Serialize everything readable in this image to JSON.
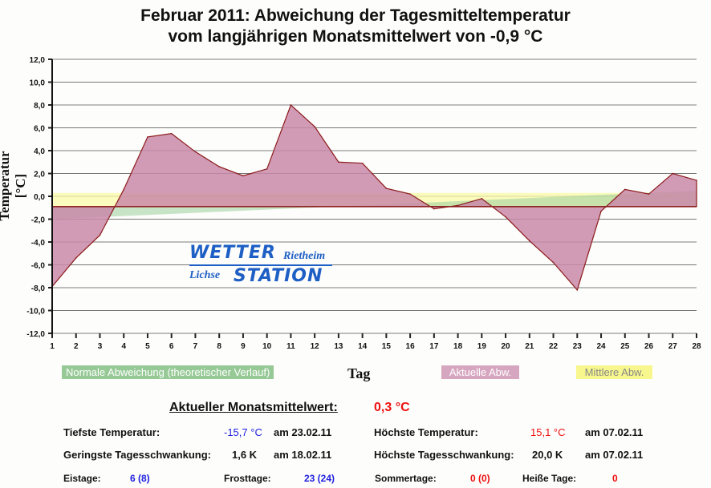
{
  "chart_data": {
    "type": "area",
    "title": "Februar 2011: Abweichung der Tagesmitteltemperatur",
    "subtitle": "vom langjährigen Monatsmittelwert von -0,9 °C",
    "xlabel": "Tag",
    "ylabel": "Temperatur [°C]",
    "ylim": [
      -12,
      12
    ],
    "xlim": [
      1,
      28
    ],
    "baseline": -0.9,
    "grid": true,
    "y_ticks": [
      "12,0",
      "10,0",
      "8,0",
      "6,0",
      "4,0",
      "2,0",
      "0,0",
      "-2,0",
      "-4,0",
      "-6,0",
      "-8,0",
      "-10,0",
      "-12,0"
    ],
    "y_tick_values": [
      12,
      10,
      8,
      6,
      4,
      2,
      0,
      -2,
      -4,
      -6,
      -8,
      -10,
      -12
    ],
    "x": [
      1,
      2,
      3,
      4,
      5,
      6,
      7,
      8,
      9,
      10,
      11,
      12,
      13,
      14,
      15,
      16,
      17,
      18,
      19,
      20,
      21,
      22,
      23,
      24,
      25,
      26,
      27,
      28
    ],
    "series": [
      {
        "name": "Normale Abweichung (theoretischer Verlauf)",
        "color": "#9ccf9c",
        "values_start_end": [
          -2.0,
          0.5
        ]
      },
      {
        "name": "Aktuelle Abw.",
        "color": "#c98aa8",
        "values": [
          -7.9,
          -5.4,
          -3.4,
          0.6,
          5.2,
          5.5,
          3.9,
          2.6,
          1.8,
          2.4,
          8.0,
          6.1,
          3.0,
          2.9,
          0.7,
          0.2,
          -1.1,
          -0.8,
          -0.2,
          -1.8,
          -3.9,
          -5.8,
          -8.2,
          -1.3,
          0.6,
          0.2,
          2.0,
          1.4
        ]
      },
      {
        "name": "Mittlere Abw.",
        "color": "#fafaa8",
        "value": 0.3
      }
    ],
    "legend": "bottom"
  },
  "logo": {
    "word1": "WETTER",
    "word2": "Rietheim",
    "word3": "Lichse",
    "word4": "STATION"
  },
  "stats": {
    "mean_label": "Aktueller Monatsmittelwert:",
    "mean_value": "0,3 °C",
    "min_label": "Tiefste Temperatur:",
    "min_value": "-15,7 °C",
    "min_date": "am 23.02.11",
    "max_label": "Höchste Temperatur:",
    "max_value": "15,1 °C",
    "max_date": "am 07.02.11",
    "minswing_label": "Geringste Tagesschwankung:",
    "minswing_value": "1,6 K",
    "minswing_date": "am 18.02.11",
    "maxswing_label": "Höchste Tagesschwankung:",
    "maxswing_value": "20,0 K",
    "maxswing_date": "am 07.02.11",
    "eis_label": "Eistage:",
    "eis_value": "6 (8)",
    "frost_label": "Frosttage:",
    "frost_value": "23 (24)",
    "sommer_label": "Sommertage:",
    "sommer_value": "0 (0)",
    "heiss_label": "Heiße Tage:",
    "heiss_value": "0"
  }
}
